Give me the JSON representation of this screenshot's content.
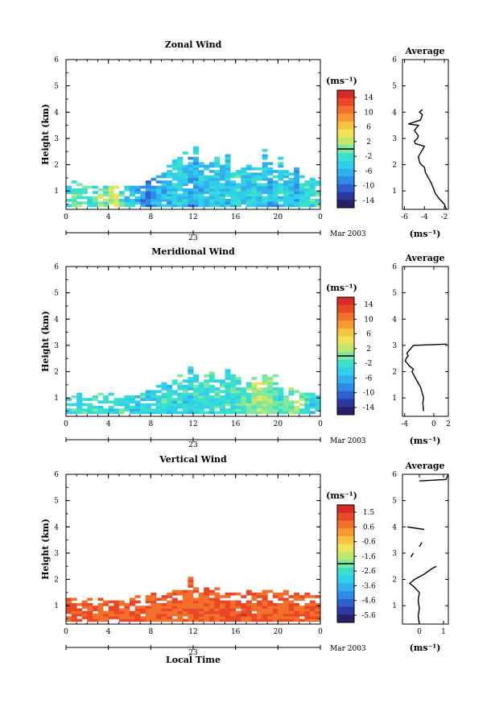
{
  "figure": {
    "bottom_xlabel": "Local Time",
    "date_label": "Mar 2003",
    "day_label": "23"
  },
  "chart_data": [
    {
      "type": "heatmap",
      "title": "Zonal Wind",
      "ylabel": "Height (km)",
      "xlabel": "Local Time",
      "x_ticks": [
        "0",
        "4",
        "8",
        "12",
        "16",
        "20",
        "0"
      ],
      "y_ticks": [
        "1",
        "2",
        "3",
        "4",
        "5",
        "6"
      ],
      "xlim": [
        0,
        24
      ],
      "ylim": [
        0.3,
        6
      ],
      "colorbar": {
        "unit": "(ms⁻¹)",
        "ticks": [
          "14",
          "10",
          "6",
          "2",
          "-2",
          "-6",
          "-10",
          "-14"
        ],
        "range": [
          -16,
          16
        ]
      },
      "echo_region": {
        "x": [
          0,
          0.5,
          1,
          1.5,
          2,
          2.5,
          3,
          3.5,
          4,
          4.5,
          5,
          5.5,
          6,
          6.5,
          7,
          7.5,
          8,
          8.5,
          9,
          9.5,
          10,
          10.5,
          11,
          11.5,
          12,
          12.5,
          13,
          13.5,
          14,
          14.5,
          15,
          15.5,
          16,
          16.5,
          17,
          17.5,
          18,
          18.5,
          19,
          19.5,
          20,
          20.5,
          21,
          21.5,
          22,
          22.5,
          23,
          23.5,
          24
        ],
        "top_km": [
          1.1,
          1.4,
          1.3,
          1.2,
          1.1,
          1.2,
          1.0,
          1.1,
          1.2,
          1.3,
          0.9,
          1.2,
          1.1,
          1.2,
          1.3,
          1.4,
          1.5,
          1.6,
          1.9,
          2.0,
          2.2,
          2.3,
          2.5,
          2.3,
          2.7,
          2.2,
          2.0,
          2.1,
          2.3,
          2.0,
          2.4,
          1.9,
          1.8,
          1.9,
          2.1,
          2.0,
          1.9,
          2.6,
          2.1,
          1.8,
          2.3,
          1.9,
          1.7,
          2.0,
          1.8,
          1.6,
          1.5,
          1.4,
          1.3
        ],
        "typical_ms": [
          -2,
          -1,
          0,
          -1,
          -3,
          -1,
          2,
          -1,
          1,
          4,
          -2,
          -4,
          -5,
          -6,
          -8,
          -9,
          -7,
          -6,
          -6,
          -5,
          -4,
          -4,
          -5,
          -7,
          -6,
          -5,
          -6,
          -5,
          -4,
          -5,
          -5,
          -4,
          -3,
          -4,
          -5,
          -4,
          -5,
          -5,
          -6,
          -5,
          -4,
          -4,
          -5,
          -6,
          -4,
          -3,
          -3,
          -2,
          -2
        ]
      },
      "average_profile": {
        "title": "Average",
        "xlabel": "(ms⁻¹)",
        "x_ticks": [
          "-6",
          "-4",
          "-2"
        ],
        "xlim": [
          -6.2,
          -1.6
        ],
        "segments": [
          {
            "height_km": [
              0.3,
              0.5,
              0.7,
              0.9,
              1.1,
              1.3,
              1.5,
              1.7,
              1.9,
              2.0,
              2.1,
              2.3,
              2.5,
              2.7,
              2.8,
              2.9,
              3.0,
              3.1,
              3.2,
              3.3,
              3.5,
              3.55,
              3.7,
              3.9,
              4.0,
              4.1
            ],
            "wind_ms": [
              -1.8,
              -2.0,
              -2.5,
              -2.9,
              -3.1,
              -3.3,
              -3.6,
              -3.9,
              -4.0,
              -4.3,
              -4.5,
              -4.6,
              -4.3,
              -4.0,
              -4.9,
              -5.0,
              -4.7,
              -4.6,
              -4.8,
              -5.0,
              -4.6,
              -5.6,
              -4.4,
              -4.2,
              -4.5,
              -4.2
            ]
          }
        ]
      }
    },
    {
      "type": "heatmap",
      "title": "Meridional Wind",
      "ylabel": "Height (km)",
      "xlabel": "Local Time",
      "x_ticks": [
        "0",
        "4",
        "8",
        "12",
        "16",
        "20",
        "0"
      ],
      "y_ticks": [
        "1",
        "2",
        "3",
        "4",
        "5",
        "6"
      ],
      "xlim": [
        0,
        24
      ],
      "ylim": [
        0.3,
        6
      ],
      "colorbar": {
        "unit": "(ms⁻¹)",
        "ticks": [
          "14",
          "10",
          "6",
          "2",
          "-2",
          "-6",
          "-10",
          "-14"
        ],
        "range": [
          -16,
          16
        ]
      },
      "echo_region": {
        "x": [
          0,
          0.5,
          1,
          1.5,
          2,
          2.5,
          3,
          3.5,
          4,
          4.5,
          5,
          5.5,
          6,
          6.5,
          7,
          7.5,
          8,
          8.5,
          9,
          9.5,
          10,
          10.5,
          11,
          11.5,
          12,
          12.5,
          13,
          13.5,
          14,
          14.5,
          15,
          15.5,
          16,
          16.5,
          17,
          17.5,
          18,
          18.5,
          19,
          19.5,
          20,
          20.5,
          21,
          21.5,
          22,
          22.5,
          23,
          23.5,
          24
        ],
        "top_km": [
          0.9,
          1.0,
          1.1,
          1.0,
          0.9,
          1.0,
          1.1,
          1.0,
          1.1,
          1.0,
          0.9,
          1.0,
          1.0,
          1.1,
          1.2,
          1.3,
          1.4,
          1.5,
          1.6,
          1.7,
          1.8,
          1.9,
          1.8,
          2.2,
          1.9,
          1.8,
          1.9,
          2.0,
          1.7,
          1.8,
          2.1,
          1.9,
          1.8,
          1.7,
          1.6,
          1.8,
          1.7,
          1.9,
          1.8,
          1.9,
          1.6,
          1.5,
          1.4,
          1.3,
          1.2,
          1.1,
          1.1,
          1.0,
          1.0
        ],
        "typical_ms": [
          -3,
          -2,
          -3,
          -2,
          -3,
          -2,
          -3,
          -2,
          -3,
          -2,
          -3,
          -3,
          -4,
          -4,
          -3,
          -4,
          -4,
          -3,
          -3,
          -4,
          -3,
          -3,
          -3,
          -4,
          -3,
          -3,
          -2,
          -3,
          -2,
          -3,
          -3,
          -2,
          -2,
          -1,
          0,
          1,
          2,
          1,
          0,
          -1,
          -2,
          -1,
          0,
          1,
          0,
          -2,
          -3,
          -2,
          -3
        ]
      },
      "average_profile": {
        "title": "Average",
        "xlabel": "(ms⁻¹)",
        "x_ticks": [
          "-4",
          "0",
          "2"
        ],
        "xlim": [
          -4.3,
          2.0
        ],
        "segments": [
          {
            "height_km": [
              0.5,
              0.8,
              1.0,
              1.2,
              1.4,
              1.6,
              1.8,
              2.0,
              2.1,
              2.2,
              2.3,
              2.4,
              2.5,
              2.6,
              2.7,
              2.8,
              2.9,
              3.0,
              3.05
            ],
            "wind_ms": [
              -1.4,
              -1.5,
              -1.4,
              -1.6,
              -1.8,
              -2.2,
              -2.6,
              -3.0,
              -2.8,
              -3.3,
              -3.6,
              -3.9,
              -3.8,
              -3.5,
              -3.7,
              -3.4,
              -3.1,
              -2.8,
              1.8
            ]
          }
        ]
      }
    },
    {
      "type": "heatmap",
      "title": "Vertical Wind",
      "ylabel": "Height (km)",
      "xlabel": "Local Time",
      "x_ticks": [
        "0",
        "4",
        "8",
        "12",
        "16",
        "20",
        "0"
      ],
      "y_ticks": [
        "1",
        "2",
        "3",
        "4",
        "5",
        "6"
      ],
      "xlim": [
        0,
        24
      ],
      "ylim": [
        0.3,
        6
      ],
      "colorbar": {
        "unit": "(ms⁻¹)",
        "ticks": [
          "1.5",
          "0.6",
          "-0.6",
          "-1.6",
          "-2.6",
          "-3.6",
          "-4.6",
          "-5.6"
        ],
        "range": [
          -6.0,
          2.0
        ]
      },
      "echo_region": {
        "x": [
          0,
          0.5,
          1,
          1.5,
          2,
          2.5,
          3,
          3.5,
          4,
          4.5,
          5,
          5.5,
          6,
          6.5,
          7,
          7.5,
          8,
          8.5,
          9,
          9.5,
          10,
          10.5,
          11,
          11.5,
          12,
          12.5,
          13,
          13.5,
          14,
          14.5,
          15,
          15.5,
          16,
          16.5,
          17,
          17.5,
          18,
          18.5,
          19,
          19.5,
          20,
          20.5,
          21,
          21.5,
          22,
          22.5,
          23,
          23.5,
          24
        ],
        "top_km": [
          1.3,
          1.4,
          1.3,
          1.2,
          1.3,
          1.2,
          1.3,
          1.2,
          1.1,
          1.2,
          1.1,
          1.2,
          1.3,
          1.4,
          1.3,
          1.4,
          1.5,
          1.4,
          1.5,
          1.6,
          1.7,
          1.6,
          1.8,
          2.1,
          1.7,
          1.6,
          1.7,
          1.6,
          1.7,
          1.5,
          1.6,
          1.5,
          1.6,
          1.5,
          1.6,
          1.5,
          1.6,
          1.7,
          1.6,
          1.5,
          1.5,
          1.6,
          1.5,
          1.5,
          1.4,
          1.5,
          1.4,
          1.5,
          1.4
        ],
        "typical_ms": [
          0.9,
          1.0,
          0.8,
          0.9,
          1.0,
          0.9,
          0.8,
          0.9,
          1.0,
          0.9,
          0.8,
          0.9,
          1.0,
          0.9,
          0.8,
          0.9,
          0.8,
          0.9,
          0.8,
          0.9,
          1.0,
          0.9,
          0.8,
          0.9,
          1.0,
          0.9,
          0.8,
          0.9,
          1.0,
          0.9,
          1.1,
          1.0,
          0.9,
          1.1,
          1.0,
          0.9,
          1.0,
          0.9,
          1.0,
          0.9,
          0.8,
          0.9,
          1.0,
          0.9,
          0.8,
          0.9,
          1.0,
          0.9,
          0.9
        ]
      },
      "average_profile": {
        "title": "Average",
        "xlabel": "(ms⁻¹)",
        "x_ticks": [
          "0",
          "1"
        ],
        "xlim": [
          -0.7,
          1.2
        ],
        "segments": [
          {
            "height_km": [
              0.3,
              0.6,
              0.9,
              1.2,
              1.5,
              1.7,
              1.85,
              2.0,
              2.2,
              2.4,
              2.5
            ],
            "wind_ms": [
              0.0,
              -0.05,
              0.0,
              -0.05,
              0.0,
              -0.2,
              -0.4,
              -0.2,
              0.2,
              0.5,
              0.7
            ]
          },
          {
            "height_km": [
              2.85,
              3.0
            ],
            "wind_ms": [
              -0.35,
              -0.25
            ]
          },
          {
            "height_km": [
              3.25,
              3.4
            ],
            "wind_ms": [
              0.0,
              0.1
            ]
          },
          {
            "height_km": [
              4.0,
              3.9
            ],
            "wind_ms": [
              -0.5,
              0.2
            ]
          },
          {
            "height_km": [
              5.75,
              5.8,
              6.0
            ],
            "wind_ms": [
              0.0,
              1.1,
              1.2
            ]
          }
        ]
      }
    }
  ]
}
